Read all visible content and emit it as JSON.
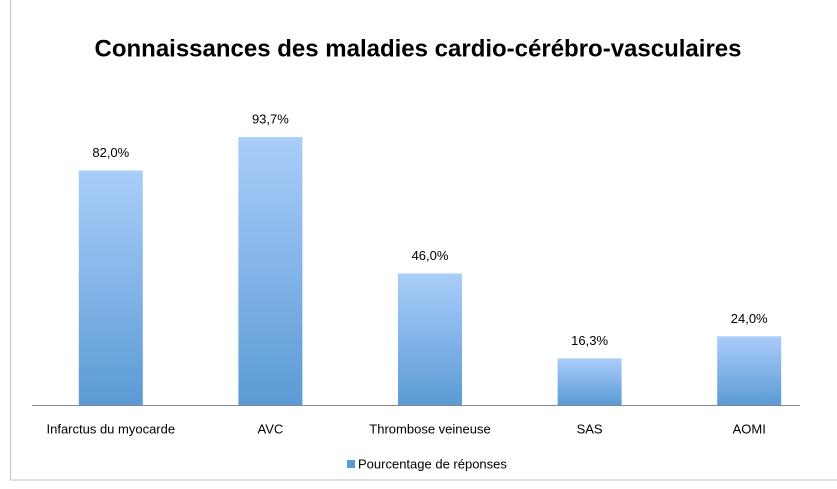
{
  "chart_data": {
    "type": "bar",
    "title": "Connaissances des maladies cardio-cérébro-vasculaires",
    "categories": [
      "Infarctus du myocarde",
      "AVC",
      "Thrombose veineuse",
      "SAS",
      "AOMI"
    ],
    "series": [
      {
        "name": "Pourcentage de réponses",
        "color": "#5b9bd5",
        "values": [
          82.0,
          93.7,
          46.0,
          16.3,
          24.0
        ],
        "value_labels": [
          "82,0%",
          "93,7%",
          "46,0%",
          "16,3%",
          "24,0%"
        ]
      }
    ],
    "ylim": [
      0,
      100
    ],
    "legend": "bottom"
  }
}
